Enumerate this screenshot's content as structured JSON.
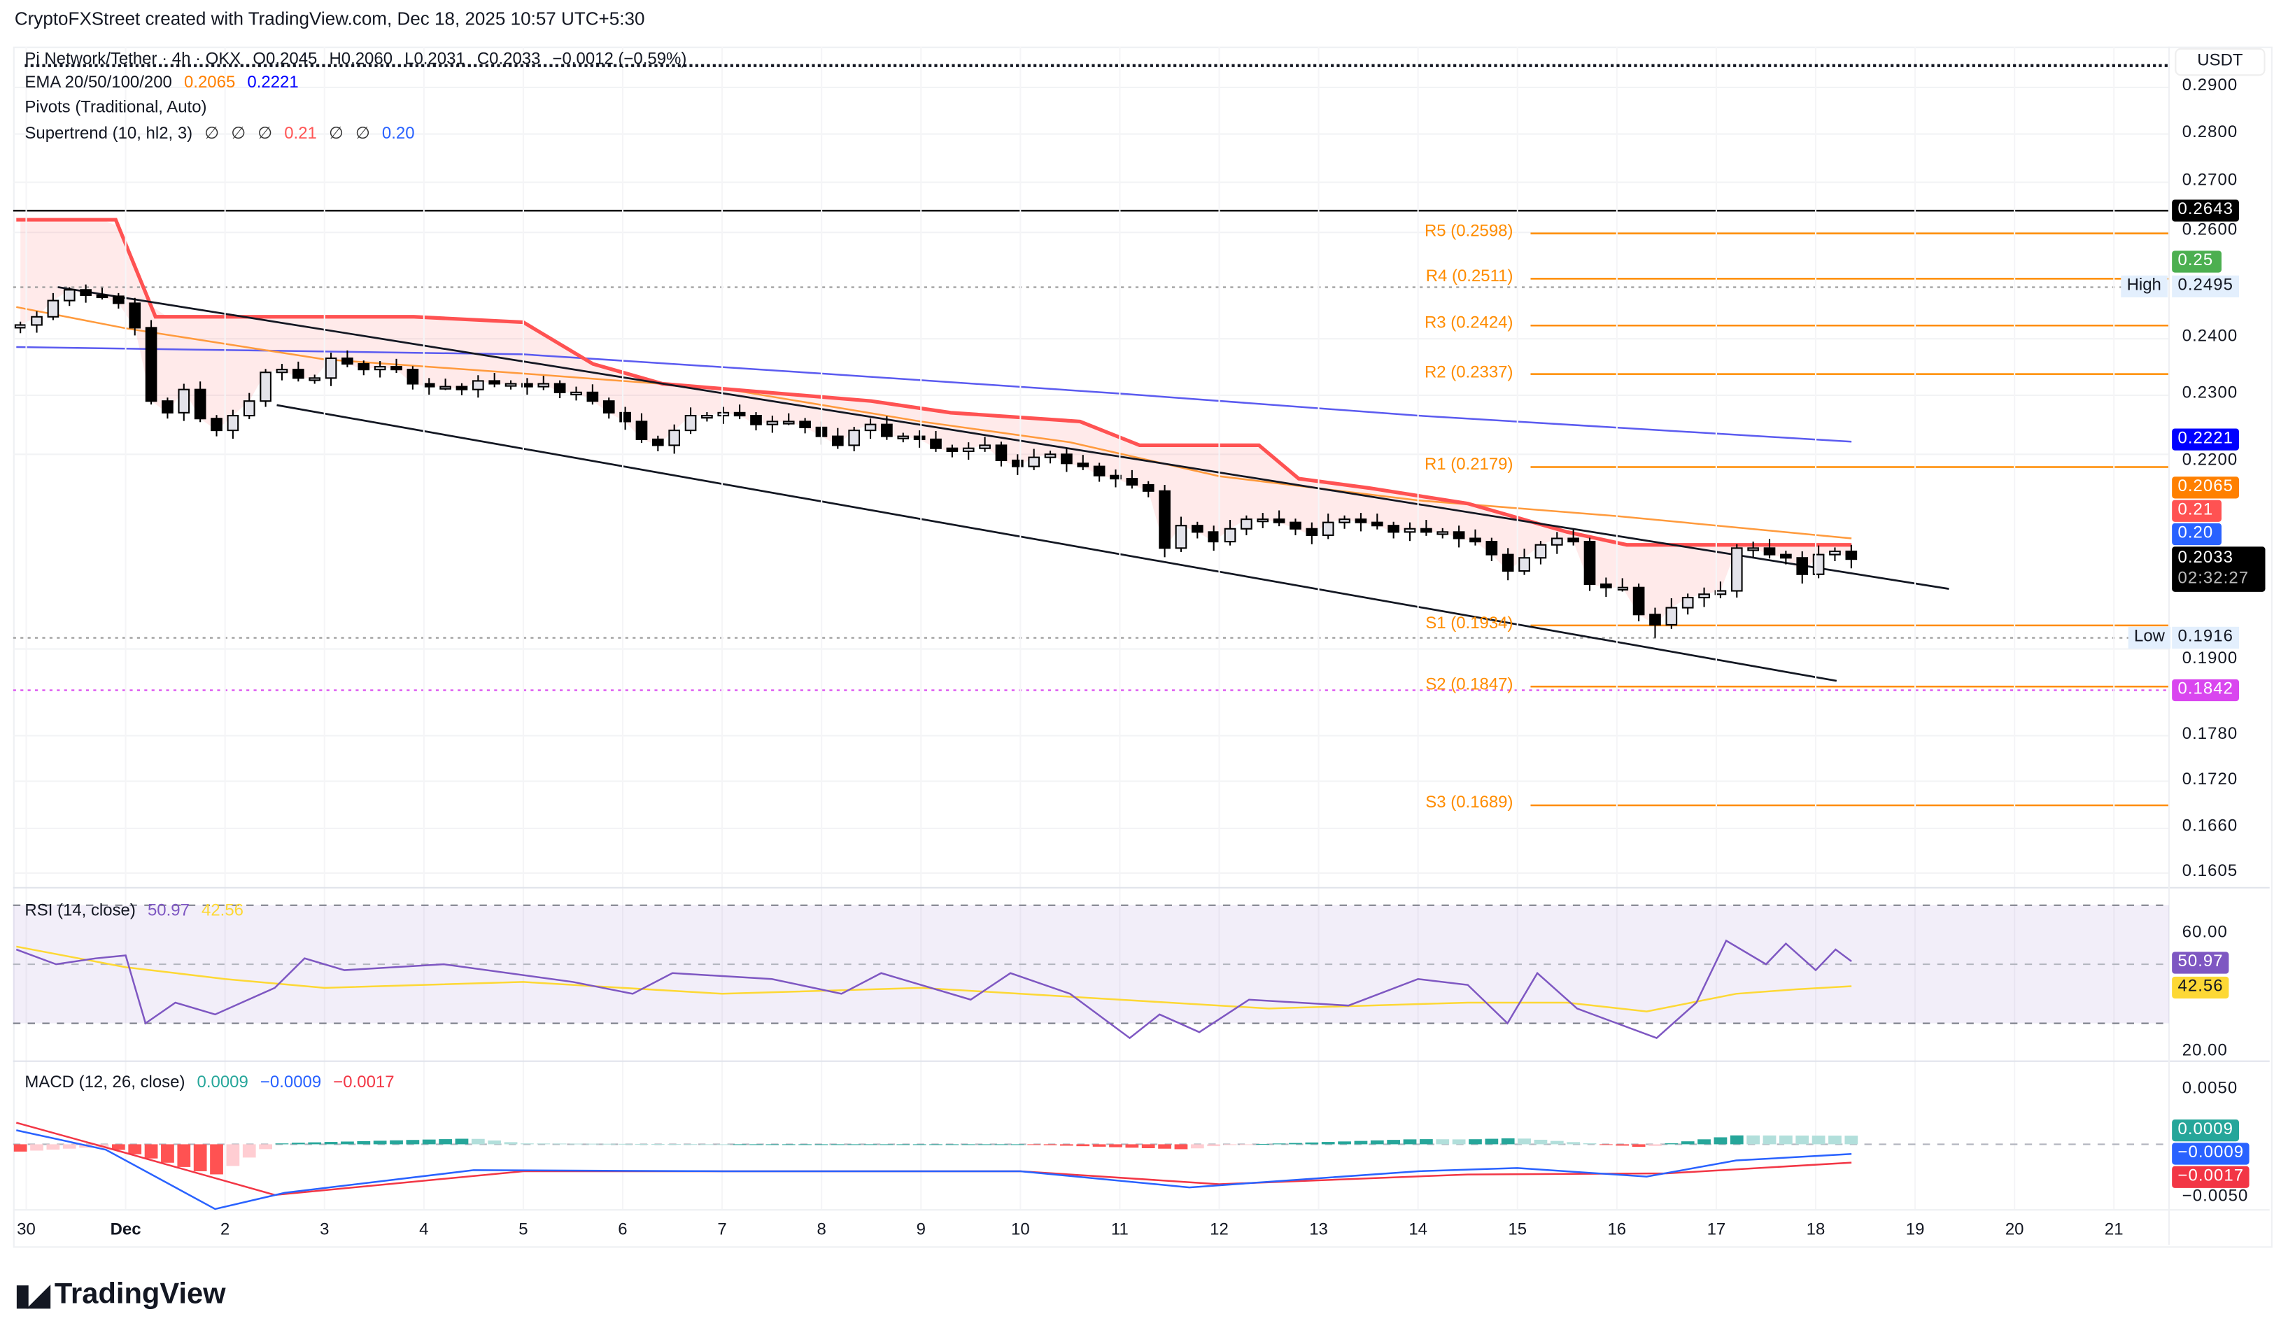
{
  "header": {
    "attribution": "CryptoFXStreet created with TradingView.com, Dec 18, 2025 10:57 UTC+5:30"
  },
  "legend": {
    "symbol": "Pi Network/Tether · 4h · OKX",
    "open": "O0.2045",
    "high": "H0.2060",
    "low": "L0.2031",
    "close": "C0.2033",
    "change": "−0.0012 (−0.59%)",
    "ema_label": "EMA 20/50/100/200",
    "ema_values": [
      "0.2065",
      "0.2221"
    ],
    "pivots_label": "Pivots (Traditional, Auto)",
    "supertrend_label": "Supertrend (10, hl2, 3)",
    "supertrend_values": [
      "∅",
      "∅",
      "∅",
      "0.21",
      "∅",
      "∅",
      "0.20"
    ]
  },
  "price_axis": {
    "currency": "USDT",
    "ticks": [
      "0.2900",
      "0.2800",
      "0.2700",
      "0.2600",
      "0.2400",
      "0.2300",
      "0.2200",
      "0.1900",
      "0.1780",
      "0.1720",
      "0.1660",
      "0.1605"
    ],
    "tick_values": [
      0.29,
      0.28,
      0.27,
      0.26,
      0.24,
      0.23,
      0.22,
      0.19,
      0.178,
      0.172,
      0.166,
      0.1605
    ]
  },
  "badges": {
    "horizontal_line": "0.2643",
    "green": "0.25",
    "high_label": "High",
    "high_value": "0.2495",
    "ema200": "0.2221",
    "ema20": "0.2065",
    "supertrend_down": "0.21",
    "supertrend_up": "0.20",
    "last_price": "0.2033",
    "countdown": "02:32:27",
    "low_label": "Low",
    "low_value": "0.1916",
    "magenta": "0.1842"
  },
  "colors": {
    "ema20": "#ff9a3c",
    "ema200": "#5b5bf0",
    "supertrend": "#ff5252",
    "pivot": "#ff8c00",
    "rsi": "#7e57c2",
    "rsi_ma": "#fdd835",
    "macd": "#2962ff",
    "signal": "#f23645"
  },
  "pivots": [
    {
      "label": "R5 (0.2598)",
      "value": 0.2598
    },
    {
      "label": "R4 (0.2511)",
      "value": 0.2511
    },
    {
      "label": "R3 (0.2424)",
      "value": 0.2424
    },
    {
      "label": "R2 (0.2337)",
      "value": 0.2337
    },
    {
      "label": "R1 (0.2179)",
      "value": 0.2179
    },
    {
      "label": "S1 (0.1934)",
      "value": 0.1934
    },
    {
      "label": "S2 (0.1847)",
      "value": 0.1847
    },
    {
      "label": "S3 (0.1689)",
      "value": 0.1689
    }
  ],
  "rsi": {
    "title": "RSI (14, close)",
    "value": "50.97",
    "ma_value": "42.56",
    "ticks": [
      "60.00",
      "20.00"
    ],
    "badge_rsi": "50.97",
    "badge_ma": "42.56"
  },
  "macd": {
    "title": "MACD (12, 26, close)",
    "hist": "0.0009",
    "macd": "−0.0009",
    "signal": "−0.0017",
    "ticks": [
      "0.0050",
      "−0.0050"
    ],
    "badge_hist": "0.0009",
    "badge_macd": "−0.0009",
    "badge_signal": "−0.0017"
  },
  "time_axis": {
    "ticks": [
      "30",
      "Dec",
      "2",
      "3",
      "4",
      "5",
      "6",
      "7",
      "8",
      "9",
      "10",
      "11",
      "12",
      "13",
      "14",
      "15",
      "16",
      "17",
      "18",
      "19",
      "20",
      "21"
    ]
  },
  "footer": {
    "brand": "TradingView"
  },
  "chart_data": {
    "type": "candlestick",
    "title": "Pi Network/Tether · 4h · OKX",
    "ylabel": "USDT",
    "ylim": [
      0.1605,
      0.29
    ],
    "x_unit": "days since Nov 30",
    "candles": {
      "first_open": 0.242,
      "close": [
        0.2425,
        0.244,
        0.247,
        0.249,
        0.248,
        0.2478,
        0.2465,
        0.242,
        0.229,
        0.227,
        0.231,
        0.226,
        0.224,
        0.2265,
        0.229,
        0.234,
        0.2345,
        0.233,
        0.233,
        0.2365,
        0.2355,
        0.2345,
        0.235,
        0.2345,
        0.232,
        0.2315,
        0.2315,
        0.231,
        0.2325,
        0.232,
        0.232,
        0.2315,
        0.232,
        0.2305,
        0.2305,
        0.229,
        0.227,
        0.2255,
        0.2225,
        0.2215,
        0.224,
        0.2265,
        0.2265,
        0.227,
        0.2265,
        0.225,
        0.2255,
        0.2255,
        0.2245,
        0.223,
        0.2215,
        0.224,
        0.225,
        0.223,
        0.223,
        0.2225,
        0.221,
        0.2205,
        0.221,
        0.2215,
        0.219,
        0.218,
        0.2195,
        0.22,
        0.2185,
        0.218,
        0.2165,
        0.216,
        0.215,
        0.214,
        0.205,
        0.2085,
        0.2075,
        0.206,
        0.208,
        0.2095,
        0.2095,
        0.209,
        0.208,
        0.207,
        0.209,
        0.2095,
        0.209,
        0.2085,
        0.2075,
        0.208,
        0.2075,
        0.2075,
        0.2065,
        0.206,
        0.204,
        0.2015,
        0.2035,
        0.2055,
        0.2065,
        0.206,
        0.1995,
        0.199,
        0.199,
        0.195,
        0.1935,
        0.196,
        0.1975,
        0.198,
        0.1985,
        0.205,
        0.205,
        0.204,
        0.2035,
        0.201,
        0.204,
        0.2045,
        0.2033
      ],
      "high_point": {
        "index": 3,
        "value": 0.2495
      },
      "low_point": {
        "index": 100,
        "value": 0.1916
      }
    },
    "ema20": [
      [
        -0.1,
        0.2458
      ],
      [
        1,
        0.2419
      ],
      [
        3,
        0.2363
      ],
      [
        5,
        0.2338
      ],
      [
        7,
        0.2312
      ],
      [
        9,
        0.2255
      ],
      [
        10.5,
        0.222
      ],
      [
        12,
        0.2164
      ],
      [
        14,
        0.2125
      ],
      [
        16,
        0.21
      ],
      [
        18.36,
        0.2065
      ]
    ],
    "ema200": [
      [
        -0.1,
        0.2385
      ],
      [
        5,
        0.2372
      ],
      [
        8,
        0.2338
      ],
      [
        11,
        0.2303
      ],
      [
        14,
        0.2265
      ],
      [
        18.36,
        0.2221
      ]
    ],
    "supertrend": [
      [
        -0.1,
        0.2625
      ],
      [
        0.9,
        0.2625
      ],
      [
        1.3,
        0.244
      ],
      [
        3.9,
        0.244
      ],
      [
        5,
        0.243
      ],
      [
        5.7,
        0.2355
      ],
      [
        6.4,
        0.232
      ],
      [
        8.5,
        0.229
      ],
      [
        9.3,
        0.227
      ],
      [
        10.6,
        0.2255
      ],
      [
        11.2,
        0.2215
      ],
      [
        12.4,
        0.2215
      ],
      [
        12.8,
        0.216
      ],
      [
        13.5,
        0.2145
      ],
      [
        14.5,
        0.212
      ],
      [
        15.5,
        0.2075
      ],
      [
        16.1,
        0.2055
      ],
      [
        18.36,
        0.2055
      ]
    ],
    "horizontal_line": 0.2643,
    "high_line": 0.2495,
    "low_line": 0.1916,
    "magenta_line": 0.1842,
    "trendlines": [
      {
        "name": "upper",
        "from": [
          0.32,
          0.2495
        ],
        "to": [
          19.34,
          0.1988
        ]
      },
      {
        "name": "lower",
        "from": [
          2.52,
          0.2283
        ],
        "to": [
          18.21,
          0.1855
        ]
      }
    ],
    "rsi_series": [
      [
        -0.1,
        55
      ],
      [
        0.3,
        50
      ],
      [
        0.7,
        52
      ],
      [
        1,
        53
      ],
      [
        1.2,
        30
      ],
      [
        1.5,
        37
      ],
      [
        1.9,
        33
      ],
      [
        2.5,
        42
      ],
      [
        2.8,
        52
      ],
      [
        3.2,
        48
      ],
      [
        4.2,
        50
      ],
      [
        5.5,
        44
      ],
      [
        6.1,
        40
      ],
      [
        6.5,
        47
      ],
      [
        7.5,
        45
      ],
      [
        8.2,
        40
      ],
      [
        8.6,
        47
      ],
      [
        9.5,
        38
      ],
      [
        9.9,
        47
      ],
      [
        10.5,
        40
      ],
      [
        11.1,
        25
      ],
      [
        11.4,
        33
      ],
      [
        11.8,
        27
      ],
      [
        12.3,
        38
      ],
      [
        13.3,
        36
      ],
      [
        14,
        45
      ],
      [
        14.5,
        43
      ],
      [
        14.9,
        30
      ],
      [
        15.2,
        47
      ],
      [
        15.6,
        35
      ],
      [
        16,
        30
      ],
      [
        16.4,
        25
      ],
      [
        16.8,
        37
      ],
      [
        17.1,
        58
      ],
      [
        17.5,
        50
      ],
      [
        17.7,
        57
      ],
      [
        18,
        48
      ],
      [
        18.2,
        55
      ],
      [
        18.36,
        50.97
      ]
    ],
    "rsi_ma_series": [
      [
        -0.1,
        56
      ],
      [
        1,
        49
      ],
      [
        2,
        45
      ],
      [
        3,
        42
      ],
      [
        5,
        44
      ],
      [
        7,
        40
      ],
      [
        9,
        42
      ],
      [
        11,
        38
      ],
      [
        12.5,
        35
      ],
      [
        14.5,
        37
      ],
      [
        15.5,
        37
      ],
      [
        16.3,
        34
      ],
      [
        17.2,
        40
      ],
      [
        17.8,
        41.5
      ],
      [
        18.36,
        42.56
      ]
    ],
    "macd_series": [
      [
        -0.1,
        0.0013
      ],
      [
        0.8,
        -0.0005
      ],
      [
        1.9,
        -0.006
      ],
      [
        2.6,
        -0.0045
      ],
      [
        4.5,
        -0.0024
      ],
      [
        7,
        -0.0025
      ],
      [
        10,
        -0.0025
      ],
      [
        11.7,
        -0.004
      ],
      [
        14,
        -0.0025
      ],
      [
        15,
        -0.0022
      ],
      [
        16.3,
        -0.003
      ],
      [
        17.2,
        -0.0015
      ],
      [
        18.36,
        -0.0009
      ]
    ],
    "signal_series": [
      [
        -0.1,
        0.002
      ],
      [
        1,
        -0.0008
      ],
      [
        2.5,
        -0.0047
      ],
      [
        5,
        -0.0025
      ],
      [
        10,
        -0.0025
      ],
      [
        12,
        -0.0037
      ],
      [
        14.5,
        -0.0028
      ],
      [
        16.5,
        -0.0027
      ],
      [
        18.36,
        -0.0017
      ]
    ],
    "rsi_levels": [
      70,
      50,
      30
    ],
    "macd_ylim": [
      -0.005,
      0.005
    ]
  }
}
